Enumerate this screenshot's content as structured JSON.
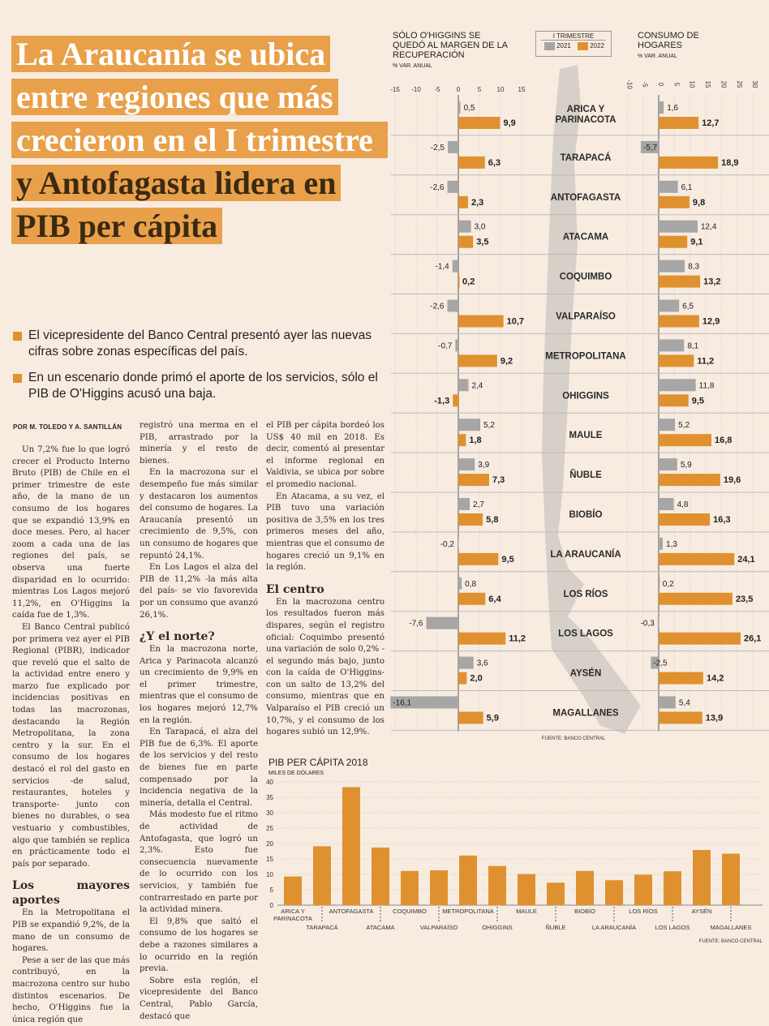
{
  "headline": {
    "part1": "La Araucanía se ubica entre regiones que más crecieron en el I trimestre",
    "part2": " y Antofagasta lidera en PIB per cápita"
  },
  "bullets": [
    "El vicepresidente del Banco Central presentó ayer las nuevas cifras sobre zonas específicas del país.",
    "En un escenario donde primó el aporte de los servicios, sólo el PIB de O'Higgins acusó una baja."
  ],
  "byline": "POR M. TOLEDO Y A. SANTILLÁN",
  "article": {
    "col1": [
      {
        "p": "Un 7,2% fue lo que logró crecer el Producto Interno Bruto (PIB) de Chile en el primer trimestre de este año, de la mano de un consumo de los hogares que se expandió 13,9% en doce meses. Pero, al hacer zoom a cada una de las regiones del país, se observa una fuerte disparidad en lo ocurrido: mientras Los Lagos mejoró 11,2%, en O'Higgins la caída fue de 1,3%."
      },
      {
        "p": "El Banco Central publicó por primera vez ayer el PIB Regional (PIBR), indicador que reveló que el salto de la actividad entre enero y marzo fue explicado por incidencias positivas en todas las macrozonas, destacando la Región Metropolitana, la zona centro y la sur. En el consumo de los hogares destacó el rol del gasto en servicios -de salud, restaurantes, hoteles y transporte- junto con bienes no durables, o sea vestuario y combustibles, algo que también se replica en prácticamente todo el país por separado."
      },
      {
        "h": "Los mayores aportes"
      },
      {
        "p": "En la Metropolitana el PIB se expandió 9,2%, de la mano de un consumo de hogares."
      },
      {
        "p": "Pese a ser de las que más contribuyó, en la macrozona centro sur hubo distintos escenarios. De hecho, O'Higgins fue la única región que"
      }
    ],
    "col2": [
      {
        "p0": "registró una merma en el PIB, arrastrado por la minería y el resto de bienes."
      },
      {
        "p": "En la macrozona sur el desempeño fue más similar y destacaron los aumentos del consumo de hogares. La Araucanía presentó un crecimiento de 9,5%, con un consumo de hogares que repuntó 24,1%."
      },
      {
        "p": "En Los Lagos el alza del PIB de 11,2% -la más alta del país- se vio favorevida por un consumo que avanzó 26,1%."
      },
      {
        "h": "¿Y el norte?"
      },
      {
        "p": "En la macrozona norte, Arica y Parinacota alcanzó un crecimiento de 9,9% en el primer trimestre, mientras que el consumo de los hogares mejoró 12,7% en la región."
      },
      {
        "p": "En Tarapacá, el alza del PIB fue de 6,3%. El aporte de los servicios y del resto de bienes fue en parte compensado por la incidencia negativa de la minería, detalla el Central."
      },
      {
        "p": "Más modesto fue el ritmo de actividad de Antofagasta, que logró un 2,3%. Esto fue consecuencia nuevamente de lo ocurrido con los servicios, y también fue contrarrestado en parte por la actividad minera."
      },
      {
        "p": "El 9,8% que saltó el consumo de los hogares se debe a razones similares a lo ocurrido en la región previa."
      },
      {
        "p": "Sobre esta región, el vicepresidente del Banco Central, Pablo García, destacó que"
      }
    ],
    "col3": [
      {
        "p0": "el PIB per cápita bordeó los US$ 40 mil en 2018. Es decir, comentó al presentar el informe regional en Valdivia, se ubica por sobre el promedio nacional."
      },
      {
        "p": "En Atacama, a su vez, el PIB tuvo una variación positiva de 3,5% en los tres primeros meses del año, mientras que el consumo de hogares creció un 9,1% en la región."
      },
      {
        "h": "El centro"
      },
      {
        "p": "En la macrozona centro los resultados fueron más dispares, según el registro oficial: Coquimbo presentó una variación de solo 0,2% -el segundo más bajo, junto con la caída de O'Higgins- con un salto de 13,2% del consumo, mientras que en Valparaíso el PIB creció un 10,7%, y el consumo de los hogares subió un 12,9%."
      }
    ]
  },
  "colors": {
    "accent": "#e0912f",
    "gray": "#a6a6a6",
    "background": "#f8ece1"
  },
  "chart_data": [
    {
      "type": "bar",
      "orientation": "horizontal",
      "title": "SÓLO O'HIGGINS SE QUEDÓ AL MARGEN DE LA RECUPERACIÓN",
      "subtitle": "% VAR. ANUAL",
      "legend_title": "I TRIMESTRE",
      "xlim": [
        -15,
        15
      ],
      "ticks": [
        "-15",
        "-10",
        "-5",
        "0",
        "5",
        "10",
        "15"
      ],
      "tick_values": [
        -15,
        -10,
        -5,
        0,
        5,
        10,
        15
      ],
      "categories": [
        "ARICA Y PARINACOTA",
        "TARAPACÁ",
        "ANTOFAGASTA",
        "ATACAMA",
        "COQUIMBO",
        "VALPARAÍSO",
        "METROPOLITANA",
        "OHIGGINS",
        "MAULE",
        "ÑUBLE",
        "BIOBÍO",
        "LA ARAUCANÍA",
        "LOS RÍOS",
        "LOS LAGOS",
        "AYSÉN",
        "MAGALLANES"
      ],
      "series": [
        {
          "name": "2021",
          "values": [
            0.5,
            -2.5,
            -2.6,
            3.0,
            -1.4,
            -2.6,
            -0.7,
            2.4,
            5.2,
            3.9,
            2.7,
            -0.2,
            0.8,
            -7.6,
            3.6,
            -16.1
          ],
          "labels": [
            "0,5",
            "-2,5",
            "-2,6",
            "3,0",
            "-1,4",
            "-2,6",
            "-0,7",
            "2,4",
            "5,2",
            "3,9",
            "2,7",
            "-0,2",
            "0,8",
            "-7,6",
            "3,6",
            "-16,1"
          ]
        },
        {
          "name": "2022",
          "values": [
            9.9,
            6.3,
            2.3,
            3.5,
            0.2,
            10.7,
            9.2,
            -1.3,
            1.8,
            7.3,
            5.8,
            9.5,
            6.4,
            11.2,
            2.0,
            5.9
          ],
          "labels": [
            "9,9",
            "6,3",
            "2,3",
            "3,5",
            "0,2",
            "10,7",
            "9,2",
            "-1,3",
            "1,8",
            "7,3",
            "5,8",
            "9,5",
            "6,4",
            "11,2",
            "2,0",
            "5,9"
          ]
        }
      ]
    },
    {
      "type": "bar",
      "orientation": "horizontal",
      "title": "CONSUMO DE HOGARES",
      "subtitle": "% VAR. ANUAL",
      "xlim": [
        -10,
        30
      ],
      "ticks": [
        "-10",
        "-5",
        "0",
        "5",
        "10",
        "15",
        "20",
        "25",
        "30"
      ],
      "tick_values": [
        -10,
        -5,
        0,
        5,
        10,
        15,
        20,
        25,
        30
      ],
      "series": [
        {
          "name": "2021",
          "values": [
            1.6,
            -5.7,
            6.1,
            12.4,
            8.3,
            6.5,
            8.1,
            11.8,
            5.2,
            5.9,
            4.8,
            1.3,
            0.2,
            -0.3,
            -2.5,
            5.4
          ],
          "labels": [
            "1,6",
            "-5,7",
            "6,1",
            "12,4",
            "8,3",
            "6,5",
            "8,1",
            "11,8",
            "5,2",
            "5,9",
            "4,8",
            "1,3",
            "0,2",
            "-0,3",
            "-2,5",
            "5,4"
          ]
        },
        {
          "name": "2022",
          "values": [
            12.7,
            18.9,
            9.8,
            9.1,
            13.2,
            12.9,
            11.2,
            9.5,
            16.8,
            19.6,
            16.3,
            24.1,
            23.5,
            26.1,
            14.2,
            13.9
          ],
          "labels": [
            "12,7",
            "18,9",
            "9,8",
            "9,1",
            "13,2",
            "12,9",
            "11,2",
            "9,5",
            "16,8",
            "19,6",
            "16,3",
            "24,1",
            "23,5",
            "26,1",
            "14,2",
            "13,9"
          ]
        }
      ],
      "source": "FUENTE: BANCO CENTRAL"
    },
    {
      "type": "bar",
      "title": "PIB PER CÁPITA 2018",
      "ylabel": "MILES DE DÓLARES",
      "ylim": [
        0,
        40
      ],
      "ticks": [
        "0",
        "5",
        "10",
        "15",
        "20",
        "25",
        "30",
        "35",
        "40"
      ],
      "tick_values": [
        0,
        5,
        10,
        15,
        20,
        25,
        30,
        35,
        40
      ],
      "categories": [
        "ARICA Y PARINACOTA",
        "TARAPACÁ",
        "ANTOFAGASTA",
        "ATACAMA",
        "COQUIMBO",
        "VALPARAÍSO",
        "METROPOLITANA",
        "OHIGGINS",
        "MAULE",
        "ÑUBLE",
        "BIOBÍO",
        "LA ARAUCANÍA",
        "LOS RÍOS",
        "LOS LAGOS",
        "AYSÉN",
        "MAGALLANES"
      ],
      "values": [
        9.3,
        19.1,
        38.3,
        18.7,
        11.1,
        11.3,
        16.1,
        12.7,
        10.1,
        7.3,
        11.1,
        8.1,
        9.9,
        11.0,
        17.9,
        16.7
      ],
      "source": "FUENTE: BANCO CENTRAL"
    }
  ]
}
